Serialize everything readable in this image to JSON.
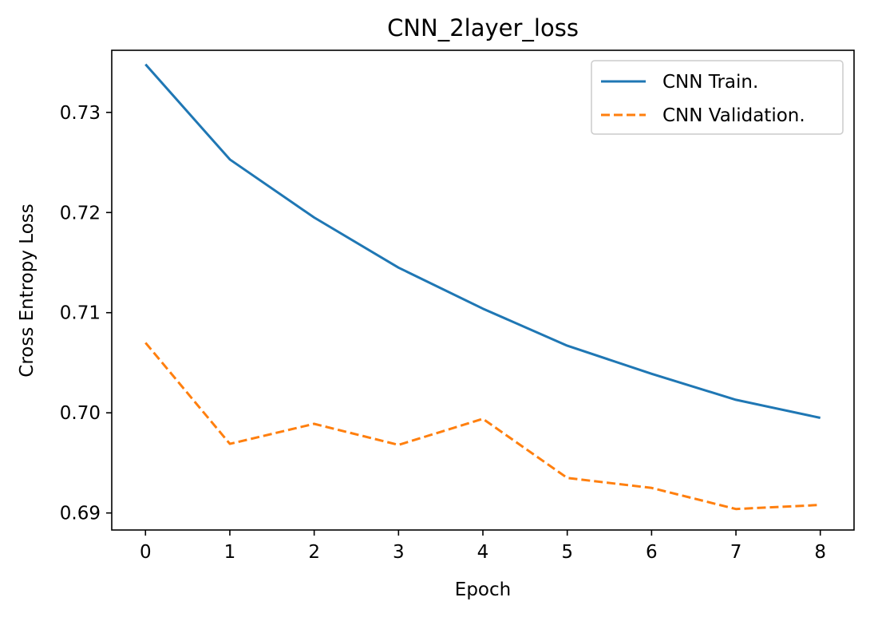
{
  "chart_data": {
    "type": "line",
    "title": "CNN_2layer_loss",
    "xlabel": "Epoch",
    "ylabel": "Cross Entropy Loss",
    "x": [
      0,
      1,
      2,
      3,
      4,
      5,
      6,
      7,
      8
    ],
    "xlim": [
      -0.4,
      8.4
    ],
    "ylim": [
      0.6883,
      0.7362
    ],
    "xticks": [
      0,
      1,
      2,
      3,
      4,
      5,
      6,
      7,
      8
    ],
    "yticks": [
      0.69,
      0.7,
      0.71,
      0.72,
      0.73
    ],
    "ytick_labels": [
      "0.69",
      "0.70",
      "0.71",
      "0.72",
      "0.73"
    ],
    "grid": false,
    "legend_position": "top-right",
    "series": [
      {
        "name": "CNN Train.",
        "color": "#1f77b4",
        "dashed": false,
        "values": [
          0.7348,
          0.7253,
          0.7195,
          0.7145,
          0.7104,
          0.7067,
          0.7039,
          0.7013,
          0.6995
        ]
      },
      {
        "name": "CNN Validation.",
        "color": "#ff7f0e",
        "dashed": true,
        "values": [
          0.707,
          0.6969,
          0.6989,
          0.6968,
          0.6994,
          0.6935,
          0.6925,
          0.6904,
          0.6908
        ]
      }
    ]
  }
}
